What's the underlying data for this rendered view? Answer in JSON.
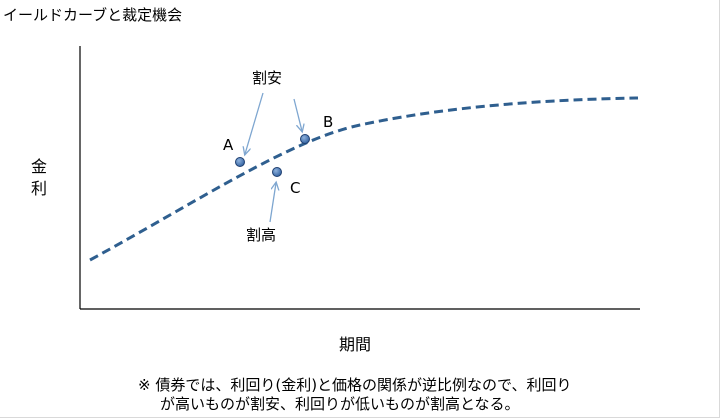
{
  "title": "イールドカーブと裁定機会",
  "axis": {
    "y_label": "金利",
    "x_label": "期間"
  },
  "points": [
    {
      "label": "A"
    },
    {
      "label": "B"
    },
    {
      "label": "C"
    }
  ],
  "annotations": {
    "cheap": "割安",
    "rich": "割高"
  },
  "note": {
    "line1": "※ 債券では、利回り(金利)と価格の関係が逆比例なので、利回り",
    "line2": "が高いものが割安、利回りが低いものが割高となる。"
  },
  "colors": {
    "curve": "#2f5f8f",
    "point_fill": "#2f5f9f",
    "arrow": "#7ea6d0",
    "axis": "#000000"
  }
}
